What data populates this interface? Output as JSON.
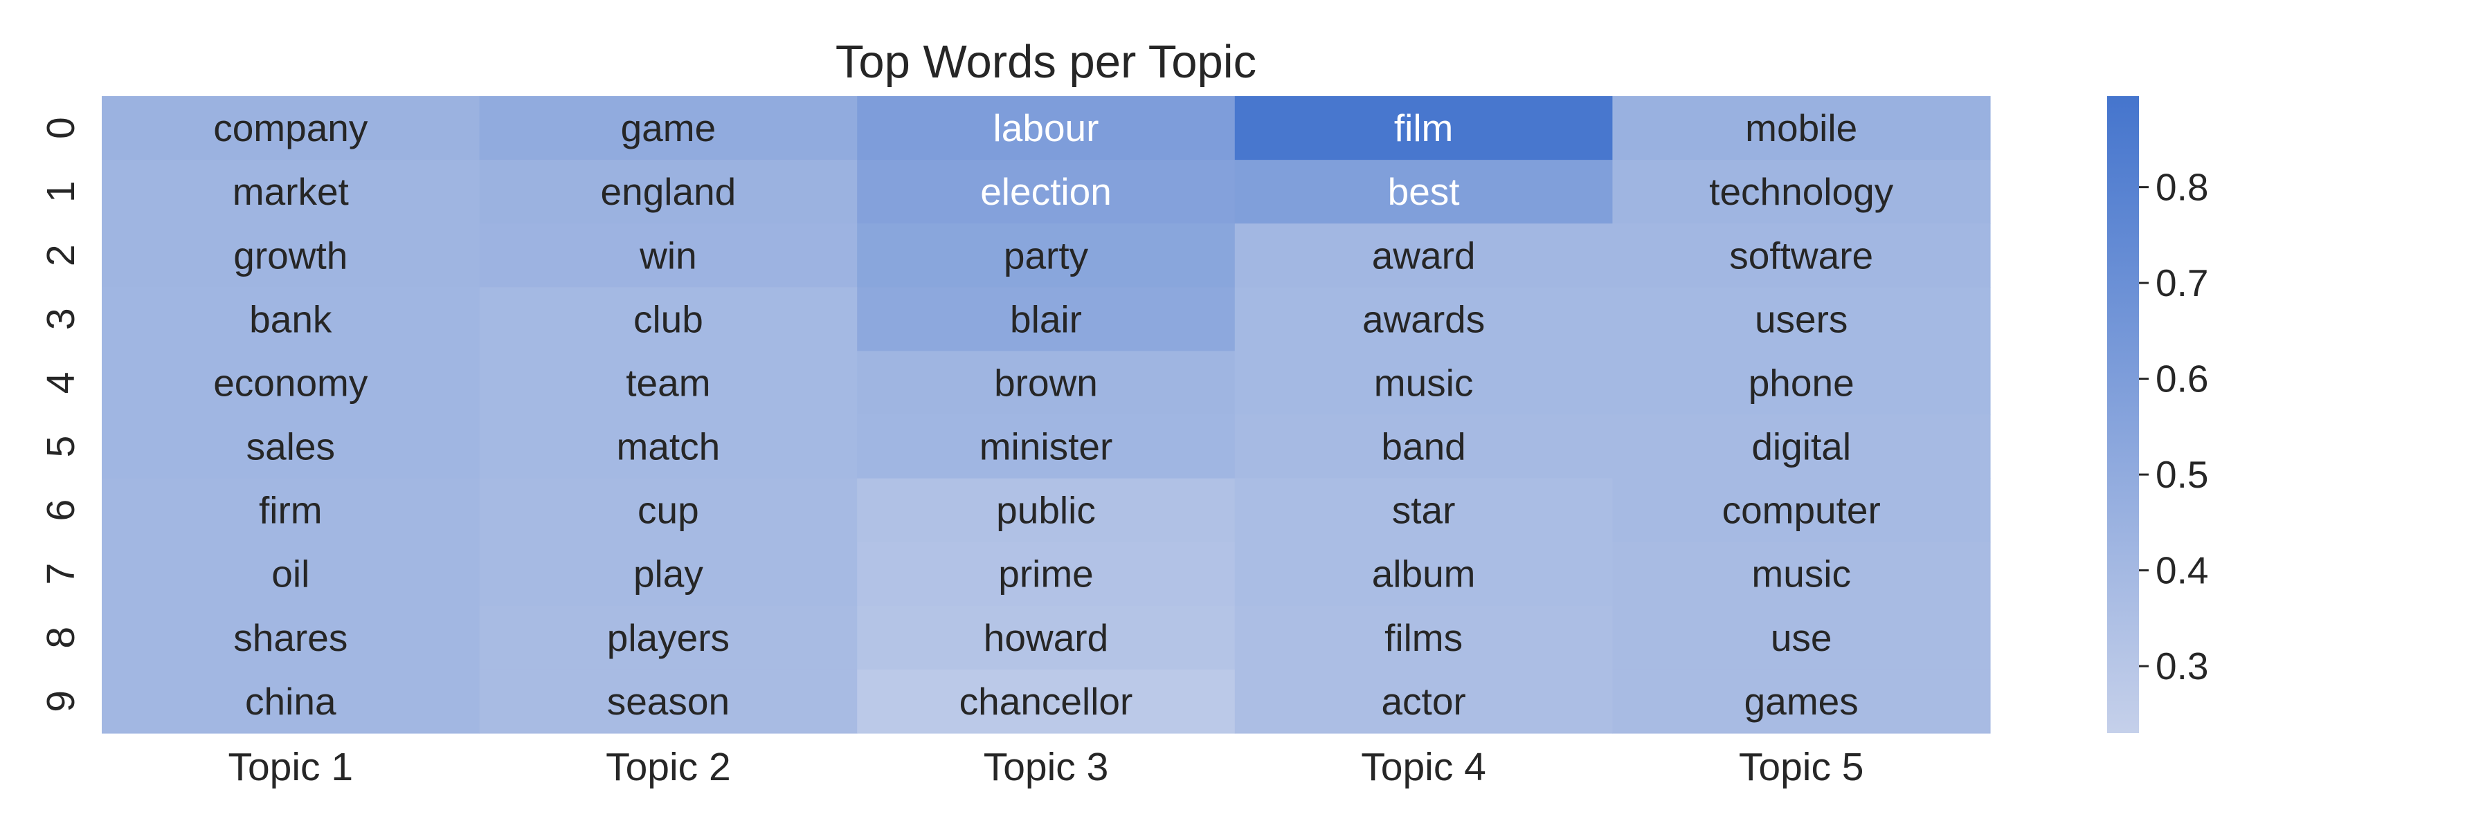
{
  "chart_data": {
    "type": "heatmap",
    "title": "Top Words per Topic",
    "xlabel": "",
    "ylabel": "",
    "x_categories": [
      "Topic 1",
      "Topic 2",
      "Topic 3",
      "Topic 4",
      "Topic 5"
    ],
    "y_categories": [
      "0",
      "1",
      "2",
      "3",
      "4",
      "5",
      "6",
      "7",
      "8",
      "9"
    ],
    "words": [
      [
        "company",
        "game",
        "labour",
        "film",
        "mobile"
      ],
      [
        "market",
        "england",
        "election",
        "best",
        "technology"
      ],
      [
        "growth",
        "win",
        "party",
        "award",
        "software"
      ],
      [
        "bank",
        "club",
        "blair",
        "awards",
        "users"
      ],
      [
        "economy",
        "team",
        "brown",
        "music",
        "phone"
      ],
      [
        "sales",
        "match",
        "minister",
        "band",
        "digital"
      ],
      [
        "firm",
        "cup",
        "public",
        "star",
        "computer"
      ],
      [
        "oil",
        "play",
        "prime",
        "album",
        "music"
      ],
      [
        "shares",
        "players",
        "howard",
        "films",
        "use"
      ],
      [
        "china",
        "season",
        "chancellor",
        "actor",
        "games"
      ]
    ],
    "values": [
      [
        0.45,
        0.5,
        0.6,
        0.88,
        0.46
      ],
      [
        0.43,
        0.45,
        0.57,
        0.59,
        0.43
      ],
      [
        0.43,
        0.44,
        0.54,
        0.41,
        0.41
      ],
      [
        0.42,
        0.4,
        0.52,
        0.4,
        0.4
      ],
      [
        0.42,
        0.4,
        0.43,
        0.4,
        0.4
      ],
      [
        0.42,
        0.4,
        0.42,
        0.39,
        0.39
      ],
      [
        0.41,
        0.39,
        0.34,
        0.37,
        0.39
      ],
      [
        0.41,
        0.39,
        0.33,
        0.37,
        0.38
      ],
      [
        0.41,
        0.38,
        0.32,
        0.36,
        0.38
      ],
      [
        0.41,
        0.38,
        0.28,
        0.36,
        0.38
      ]
    ],
    "colorbar": {
      "vmin": 0.23,
      "vmax": 0.895,
      "ticks": [
        0.8,
        0.7,
        0.6,
        0.5,
        0.4,
        0.3
      ],
      "tick_labels": [
        "0.8",
        "0.7",
        "0.6",
        "0.5",
        "0.4",
        "0.3"
      ],
      "color_low": "#c5d0ea",
      "color_high": "#4575cd"
    },
    "text_color_dark": "#262626",
    "text_color_light": "#ffffff",
    "grid": false
  }
}
